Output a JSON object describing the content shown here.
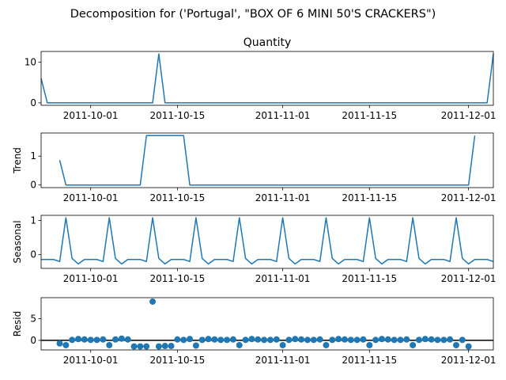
{
  "suptitle": "Decomposition for ('Portugal', \"BOX OF 6 MINI 50'S CRACKERS\")",
  "colors": {
    "line": "#1f77b4",
    "marker": "#1f77b4",
    "axis": "#000000"
  },
  "chart_data": [
    {
      "type": "line",
      "title": "Quantity",
      "ylabel": "",
      "x_range": [
        "2011-09-23",
        "2011-12-05"
      ],
      "ylim": [
        -0.6,
        12.6
      ],
      "yticks": [
        0,
        10
      ],
      "xticks": [
        "2011-10-01",
        "2011-10-15",
        "2011-11-01",
        "2011-11-15",
        "2011-12-01"
      ],
      "series": [
        {
          "points": [
            [
              "2011-09-23",
              6
            ],
            [
              "2011-09-24",
              0
            ],
            [
              "2011-10-11",
              0
            ],
            [
              "2011-10-12",
              12
            ],
            [
              "2011-10-13",
              0
            ],
            [
              "2011-12-04",
              0
            ],
            [
              "2011-12-05",
              12
            ]
          ]
        }
      ]
    },
    {
      "type": "line",
      "title": "",
      "ylabel": "Trend",
      "x_range": [
        "2011-09-23",
        "2011-12-05"
      ],
      "ylim": [
        -0.09,
        1.8
      ],
      "yticks": [
        0,
        1
      ],
      "xticks": [
        "2011-10-01",
        "2011-10-15",
        "2011-11-01",
        "2011-11-15",
        "2011-12-01"
      ],
      "series": [
        {
          "points": [
            [
              "2011-09-26",
              0.86
            ],
            [
              "2011-09-27",
              0
            ],
            [
              "2011-10-09",
              0
            ],
            [
              "2011-10-10",
              1.71
            ],
            [
              "2011-10-16",
              1.71
            ],
            [
              "2011-10-17",
              0
            ],
            [
              "2011-12-01",
              0
            ],
            [
              "2011-12-02",
              1.71
            ]
          ]
        }
      ]
    },
    {
      "type": "line",
      "title": "",
      "ylabel": "Seasonal",
      "x_range": [
        "2011-09-23",
        "2011-12-05"
      ],
      "ylim": [
        -0.4,
        1.15
      ],
      "yticks": [
        0,
        1
      ],
      "xticks": [
        "2011-10-01",
        "2011-10-15",
        "2011-11-01",
        "2011-11-15",
        "2011-12-01"
      ],
      "series": [
        {
          "start": "2011-09-23",
          "values": [
            -0.14,
            -0.14,
            -0.14,
            -0.2,
            1.08,
            -0.11,
            -0.27,
            -0.14,
            -0.14,
            -0.14,
            -0.2,
            1.08,
            -0.11,
            -0.27,
            -0.14,
            -0.14,
            -0.14,
            -0.2,
            1.08,
            -0.11,
            -0.27,
            -0.14,
            -0.14,
            -0.14,
            -0.2,
            1.08,
            -0.11,
            -0.27,
            -0.14,
            -0.14,
            -0.14,
            -0.2,
            1.08,
            -0.11,
            -0.27,
            -0.14,
            -0.14,
            -0.14,
            -0.2,
            1.08,
            -0.11,
            -0.27,
            -0.14,
            -0.14,
            -0.14,
            -0.2,
            1.08,
            -0.11,
            -0.27,
            -0.14,
            -0.14,
            -0.14,
            -0.2,
            1.08,
            -0.11,
            -0.27,
            -0.14,
            -0.14,
            -0.14,
            -0.2,
            1.08,
            -0.11,
            -0.27,
            -0.14,
            -0.14,
            -0.14,
            -0.2,
            1.08,
            -0.11,
            -0.27,
            -0.14,
            -0.14,
            -0.14,
            -0.2
          ]
        }
      ]
    },
    {
      "type": "scatter",
      "title": "",
      "ylabel": "Resid",
      "x_range": [
        "2011-09-23",
        "2011-12-05"
      ],
      "ylim": [
        -2.2,
        9.8
      ],
      "yticks": [
        0,
        5
      ],
      "xticks": [
        "2011-10-01",
        "2011-10-15",
        "2011-11-01",
        "2011-11-15",
        "2011-12-01"
      ],
      "zero_line": true,
      "series": [
        {
          "points": [
            [
              "2011-09-26",
              -0.7
            ],
            [
              "2011-09-27",
              -1.1
            ],
            [
              "2011-09-28",
              0.1
            ],
            [
              "2011-09-29",
              0.3
            ],
            [
              "2011-09-30",
              0.2
            ],
            [
              "2011-10-01",
              0.1
            ],
            [
              "2011-10-02",
              0.1
            ],
            [
              "2011-10-03",
              0.2
            ],
            [
              "2011-10-04",
              -1.1
            ],
            [
              "2011-10-05",
              0.2
            ],
            [
              "2011-10-06",
              0.4
            ],
            [
              "2011-10-07",
              0.2
            ],
            [
              "2011-10-08",
              -1.4
            ],
            [
              "2011-10-09",
              -1.4
            ],
            [
              "2011-10-10",
              -1.4
            ],
            [
              "2011-10-11",
              8.9
            ],
            [
              "2011-10-12",
              -1.4
            ],
            [
              "2011-10-13",
              -1.3
            ],
            [
              "2011-10-14",
              -1.3
            ],
            [
              "2011-10-15",
              0.2
            ],
            [
              "2011-10-16",
              0.1
            ],
            [
              "2011-10-17",
              0.3
            ],
            [
              "2011-10-18",
              -1.2
            ],
            [
              "2011-10-19",
              0.1
            ],
            [
              "2011-10-20",
              0.3
            ],
            [
              "2011-10-21",
              0.2
            ],
            [
              "2011-10-22",
              0.1
            ],
            [
              "2011-10-23",
              0.1
            ],
            [
              "2011-10-24",
              0.2
            ],
            [
              "2011-10-25",
              -1.1
            ],
            [
              "2011-10-26",
              0.1
            ],
            [
              "2011-10-27",
              0.3
            ],
            [
              "2011-10-28",
              0.2
            ],
            [
              "2011-10-29",
              0.1
            ],
            [
              "2011-10-30",
              0.1
            ],
            [
              "2011-10-31",
              0.2
            ],
            [
              "2011-11-01",
              -1.1
            ],
            [
              "2011-11-02",
              0.1
            ],
            [
              "2011-11-03",
              0.3
            ],
            [
              "2011-11-04",
              0.2
            ],
            [
              "2011-11-05",
              0.1
            ],
            [
              "2011-11-06",
              0.1
            ],
            [
              "2011-11-07",
              0.2
            ],
            [
              "2011-11-08",
              -1.1
            ],
            [
              "2011-11-09",
              0.1
            ],
            [
              "2011-11-10",
              0.3
            ],
            [
              "2011-11-11",
              0.2
            ],
            [
              "2011-11-12",
              0.1
            ],
            [
              "2011-11-13",
              0.1
            ],
            [
              "2011-11-14",
              0.2
            ],
            [
              "2011-11-15",
              -1.1
            ],
            [
              "2011-11-16",
              0.1
            ],
            [
              "2011-11-17",
              0.3
            ],
            [
              "2011-11-18",
              0.2
            ],
            [
              "2011-11-19",
              0.1
            ],
            [
              "2011-11-20",
              0.1
            ],
            [
              "2011-11-21",
              0.2
            ],
            [
              "2011-11-22",
              -1.1
            ],
            [
              "2011-11-23",
              0.1
            ],
            [
              "2011-11-24",
              0.3
            ],
            [
              "2011-11-25",
              0.2
            ],
            [
              "2011-11-26",
              0.1
            ],
            [
              "2011-11-27",
              0.1
            ],
            [
              "2011-11-28",
              0.2
            ],
            [
              "2011-11-29",
              -1.1
            ],
            [
              "2011-11-30",
              0.1
            ],
            [
              "2011-12-01",
              -1.4
            ]
          ]
        }
      ]
    }
  ]
}
